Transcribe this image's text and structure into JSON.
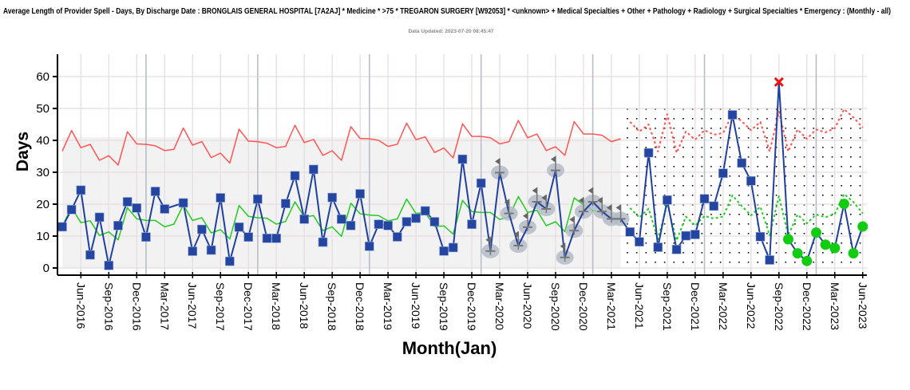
{
  "chart_data": {
    "type": "line",
    "title": "Average Length of Provider Spell - Days, By Discharge Date : BRONGLAIS GENERAL HOSPITAL [7A2AJ] * Medicine * >75 * TREGARON SURGERY [W92053] * <unknown> + Medical Specialties + Other + Pathology + Radiology + Surgical Specialties * Emergency : (Monthly - all)",
    "subtitle": "Data Updated: 2023-07-20 08:45:47",
    "xlabel": "Month(Jan)",
    "ylabel": "Days",
    "x_start": "Apr-2016",
    "x_end": "Jun-2023",
    "x_index_range": [
      0,
      86
    ],
    "ylim": [
      -2.2,
      67
    ],
    "yticks": [
      "0",
      "10",
      "20",
      "30",
      "40",
      "50",
      "60"
    ],
    "xtick_index_offset": 2,
    "xtick_step_months": 3,
    "xticks": [
      "Jun-2016",
      "Sep-2016",
      "Dec-2016",
      "Mar-2017",
      "Jun-2017",
      "Sep-2017",
      "Dec-2017",
      "Mar-2018",
      "Jun-2018",
      "Sep-2018",
      "Dec-2018",
      "Mar-2019",
      "Jun-2019",
      "Sep-2019",
      "Dec-2019",
      "Mar-2020",
      "Jun-2020",
      "Sep-2020",
      "Dec-2020",
      "Mar-2021",
      "Jun-2021",
      "Sep-2021",
      "Dec-2021",
      "Mar-2022",
      "Jun-2022",
      "Sep-2022",
      "Dec-2022",
      "Mar-2023",
      "Jun-2023"
    ],
    "year_boundary_indices": [
      9,
      21,
      33,
      45,
      57,
      69,
      81
    ],
    "grid": true,
    "baseline_period_index_range": [
      0,
      60
    ],
    "baseline_band_upper": 41,
    "forecast_period_index_range": [
      60.5,
      86
    ],
    "forecast_band_upper": 51,
    "series": [
      {
        "name": "Average length of spell",
        "color": "#2040a0",
        "start_index": 0,
        "values": [
          12.9,
          18.3,
          24.4,
          4.1,
          15.9,
          0.8,
          13.3,
          20.75,
          18.8,
          9.7,
          24,
          18.5,
          null,
          20.4,
          5.25,
          12.1,
          5.6,
          22,
          2.1,
          12.8,
          9.7,
          21.6,
          9.3,
          9.3,
          20.2,
          28.9,
          15.3,
          30.9,
          8.1,
          22.1,
          15.3,
          13.3,
          23.25,
          6.8,
          13.7,
          13.3,
          9.75,
          14.5,
          15.6,
          17.9,
          14.5,
          5.3,
          6.4,
          34.1,
          13.7,
          26.6,
          5.3,
          29.9,
          17.1,
          7,
          12.8,
          20.75,
          18.5,
          30.6,
          3.3,
          11.7,
          17.7,
          20.75,
          17.7,
          15.4,
          15.4,
          11.3,
          8.2,
          36.1,
          6.5,
          21.3,
          5.8,
          10.1,
          10.5,
          21.7,
          19.4,
          29.7,
          48,
          32.9,
          27.3,
          9.8,
          2.5,
          58.3,
          9,
          4.6,
          2.2,
          11.1,
          7.3,
          6.25,
          20.1,
          4.6,
          13
        ],
        "flagged_index_range": [
          46,
          60
        ],
        "above_limit_indices": [
          77
        ],
        "below_mean_run_index_range": [
          78,
          86
        ]
      },
      {
        "name": "Mean",
        "color": "#22cc22",
        "start_index": 0,
        "style": "solid",
        "values": [
          13,
          19,
          14.2,
          14.8,
          10.2,
          11.3,
          8.8,
          18.9,
          15.4,
          14.9,
          14.9,
          12.9,
          13.75,
          19.75,
          14.9,
          15.75,
          11,
          12,
          9.1,
          19.6,
          16.2,
          15.75,
          15.6,
          13.75,
          14.6,
          20.75,
          16,
          16.4,
          11.7,
          12.9,
          9.9,
          20.3,
          17,
          16.6,
          16.4,
          14.75,
          15.4,
          21.6,
          17.1,
          17.4,
          13,
          13.2,
          10.6,
          21.2,
          17.7,
          17.4,
          17.4,
          15.2,
          16,
          22.4,
          17.4,
          18.1,
          13.25,
          14.5,
          11.4,
          22,
          19.75,
          18,
          17.5,
          16,
          16.5
        ]
      },
      {
        "name": "Upper control limit",
        "color": "#ff5555",
        "start_index": 0,
        "style": "solid",
        "values": [
          36.6,
          43.1,
          37.7,
          38.75,
          33.75,
          35.2,
          32.25,
          42.7,
          38.9,
          38.75,
          38.3,
          36.8,
          37.2,
          43.9,
          38.5,
          39.6,
          34.6,
          36,
          32.9,
          43.5,
          39.75,
          39.6,
          39.1,
          37.7,
          38.1,
          44.75,
          39.3,
          40.3,
          35.3,
          36.75,
          33.75,
          44.3,
          40.6,
          40.5,
          40,
          38.1,
          38.8,
          45.4,
          40.2,
          41.1,
          36.2,
          37.6,
          34.5,
          45.2,
          41.25,
          41.25,
          40.8,
          38.9,
          39.6,
          46.25,
          40.8,
          42,
          36.8,
          38,
          35.3,
          45.9,
          42,
          42,
          41.6,
          39.6,
          40.5
        ]
      },
      {
        "name": "Projected mean",
        "color": "#22cc22",
        "start_index": 61,
        "style": "dashed",
        "values": [
          18.8,
          15.8,
          18.6,
          9,
          20.1,
          8.6,
          16.1,
          13.3,
          16.3,
          15.5,
          16.1,
          22.75,
          19.4,
          16.5,
          19.2,
          10.25,
          22.5,
          10.25,
          16.75,
          14,
          16.75,
          15.9,
          16.9,
          23.2,
          20.7,
          17.1
        ]
      },
      {
        "name": "Projected upper limit",
        "color": "#ff5555",
        "start_index": 61,
        "style": "dashed",
        "values": [
          45.8,
          42.75,
          45,
          36.5,
          48.2,
          36.1,
          42.75,
          40.25,
          43.2,
          41.8,
          42.3,
          48.2,
          46,
          43.2,
          45.8,
          36.5,
          49,
          36.5,
          43.4,
          40.5,
          43.4,
          42.5,
          43.8,
          49.8,
          47.2,
          44
        ]
      }
    ]
  }
}
